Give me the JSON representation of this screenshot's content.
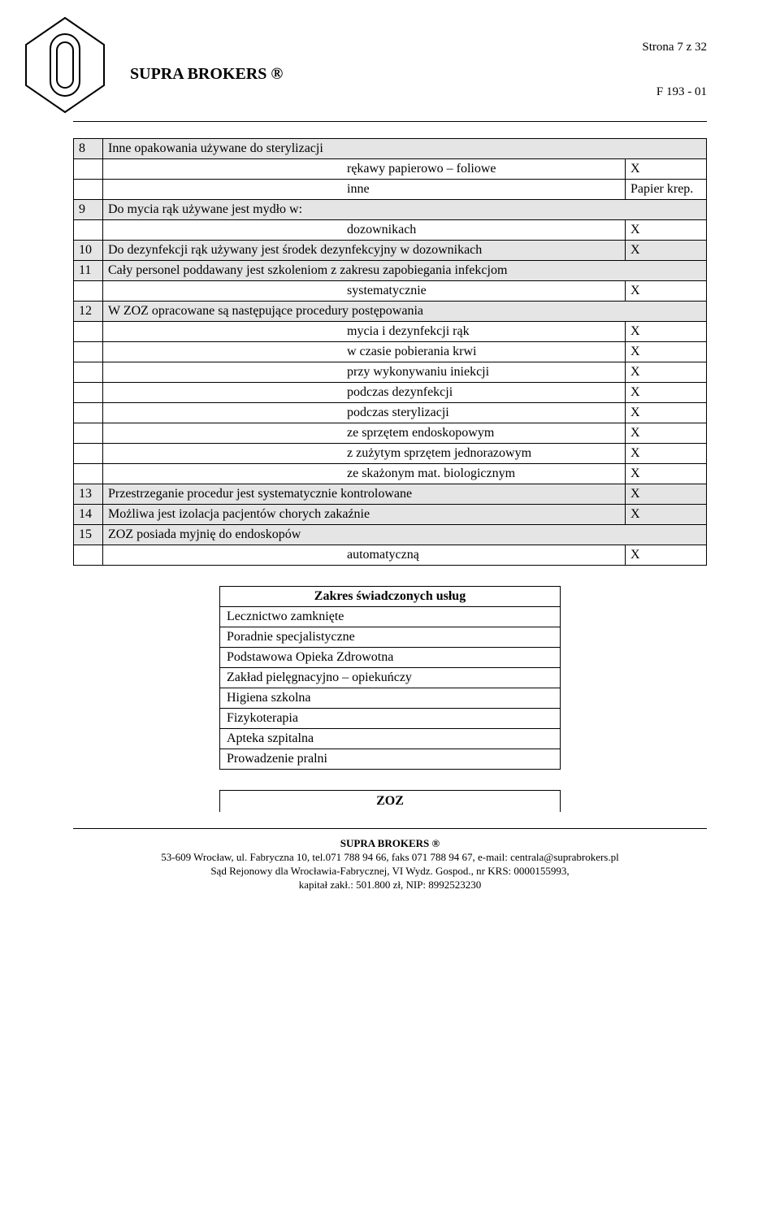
{
  "header": {
    "title": "SUPRA BROKERS ®",
    "page_indicator": "Strona 7 z 32",
    "form_code": "F 193 - 01"
  },
  "rows": [
    {
      "num": "8",
      "desc": "Inne opakowania używane do sterylizacji",
      "x": "",
      "shaded": true,
      "span": 2
    },
    {
      "num": "",
      "desc": "rękawy papierowo – foliowe",
      "x": "X",
      "shaded": false,
      "span": 1
    },
    {
      "num": "",
      "desc": "inne",
      "x": "Papier krep.",
      "shaded": false,
      "span": 1
    },
    {
      "num": "9",
      "desc": "Do mycia rąk używane jest mydło w:",
      "x": "",
      "shaded": true,
      "span": 2
    },
    {
      "num": "",
      "desc": "dozownikach",
      "x": "X",
      "shaded": false,
      "span": 1
    },
    {
      "num": "10",
      "desc": "Do dezynfekcji rąk używany jest środek dezynfekcyjny w dozownikach",
      "x": "X",
      "shaded": true,
      "span": 1,
      "single": true
    },
    {
      "num": "11",
      "desc": "Cały personel poddawany jest szkoleniom z zakresu zapobiegania infekcjom",
      "x": "",
      "shaded": true,
      "span": 2
    },
    {
      "num": "",
      "desc": "systematycznie",
      "x": "X",
      "shaded": false,
      "span": 1
    },
    {
      "num": "12",
      "desc": "W ZOZ opracowane są następujące procedury postępowania",
      "x": "",
      "shaded": true,
      "span": 2
    },
    {
      "num": "",
      "desc": "mycia i dezynfekcji rąk",
      "x": "X",
      "shaded": false,
      "span": 1
    },
    {
      "num": "",
      "desc": "w czasie pobierania krwi",
      "x": "X",
      "shaded": false,
      "span": 1
    },
    {
      "num": "",
      "desc": "przy wykonywaniu iniekcji",
      "x": "X",
      "shaded": false,
      "span": 1
    },
    {
      "num": "",
      "desc": "podczas dezynfekcji",
      "x": "X",
      "shaded": false,
      "span": 1
    },
    {
      "num": "",
      "desc": "podczas sterylizacji",
      "x": "X",
      "shaded": false,
      "span": 1
    },
    {
      "num": "",
      "desc": "ze sprzętem endoskopowym",
      "x": "X",
      "shaded": false,
      "span": 1
    },
    {
      "num": "",
      "desc": "z zużytym sprzętem jednorazowym",
      "x": "X",
      "shaded": false,
      "span": 1
    },
    {
      "num": "",
      "desc": "ze skażonym mat. biologicznym",
      "x": "X",
      "shaded": false,
      "span": 1
    },
    {
      "num": "13",
      "desc": "Przestrzeganie procedur jest systematycznie kontrolowane",
      "x": "X",
      "shaded": true,
      "span": 1,
      "single": true
    },
    {
      "num": "14",
      "desc": "Możliwa jest izolacja pacjentów chorych zakaźnie",
      "x": "X",
      "shaded": true,
      "span": 1,
      "single": true
    },
    {
      "num": "15",
      "desc": "ZOZ posiada myjnię do endoskopów",
      "x": "",
      "shaded": true,
      "span": 2
    },
    {
      "num": "",
      "desc": "automatyczną",
      "x": "X",
      "shaded": false,
      "span": 1
    }
  ],
  "services": {
    "header": "Zakres świadczonych usług",
    "items": [
      "Lecznictwo zamknięte",
      "Poradnie specjalistyczne",
      "Podstawowa Opieka Zdrowotna",
      "Zakład pielęgnacyjno – opiekuńczy",
      "Higiena szkolna",
      "Fizykoterapia",
      "Apteka szpitalna",
      "Prowadzenie pralni"
    ]
  },
  "zoz_label": "ZOZ",
  "footer": {
    "title": "SUPRA BROKERS ®",
    "line1": "53-609 Wrocław, ul. Fabryczna 10,  tel.071 788 94 66, faks 071 788 94 67, e-mail: centrala@suprabrokers.pl",
    "line2": "Sąd Rejonowy dla Wrocławia-Fabrycznej, VI Wydz. Gospod., nr KRS:  0000155993,",
    "line3": "kapitał zakł.: 501.800 zł, NIP: 8992523230"
  }
}
